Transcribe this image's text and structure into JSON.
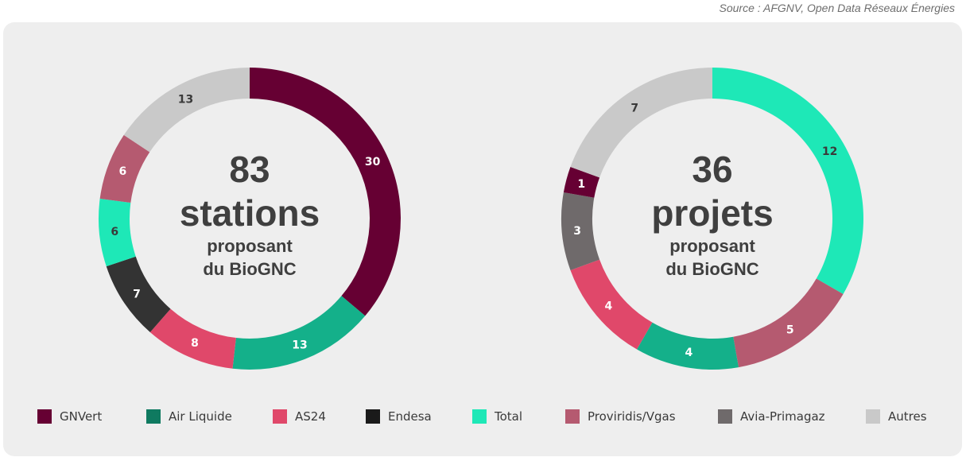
{
  "source": "Source : AFGNV, Open Data Réseaux Énergies",
  "colors": {
    "GNVert": "#660033",
    "Air Liquide": "#14b08a",
    "AS24": "#e0486a",
    "Endesa": "#333333",
    "Total": "#1ee8b7",
    "Proviridis/Vgas": "#b55a70",
    "Avia-Primagaz": "#6f6a6b",
    "Autres": "#c9c9c9"
  },
  "legend": [
    {
      "label": "GNVert",
      "color": "#660033"
    },
    {
      "label": "Air Liquide",
      "color": "#0f7a60"
    },
    {
      "label": "AS24",
      "color": "#e0486a"
    },
    {
      "label": "Endesa",
      "color": "#1a1a1a"
    },
    {
      "label": "Total",
      "color": "#1ee8b7"
    },
    {
      "label": "Proviridis/Vgas",
      "color": "#b55a70"
    },
    {
      "label": "Avia-Primagaz",
      "color": "#6f6a6b"
    },
    {
      "label": "Autres",
      "color": "#c9c9c9"
    }
  ],
  "chart_data": [
    {
      "type": "pie",
      "donut": true,
      "center": {
        "number": "83",
        "unit": "stations",
        "line1": "proposant",
        "line2": "du BioGNC"
      },
      "slices": [
        {
          "name": "GNVert",
          "value": 30,
          "color": "#660033",
          "label_color": "#ffffff"
        },
        {
          "name": "Air Liquide",
          "value": 13,
          "color": "#14b08a",
          "label_color": "#ffffff"
        },
        {
          "name": "AS24",
          "value": 8,
          "color": "#e0486a",
          "label_color": "#ffffff"
        },
        {
          "name": "Endesa",
          "value": 7,
          "color": "#333333",
          "label_color": "#ffffff"
        },
        {
          "name": "Total",
          "value": 6,
          "color": "#1ee8b7",
          "label_color": "#3a3a3a"
        },
        {
          "name": "Proviridis/Vgas",
          "value": 6,
          "color": "#b55a70",
          "label_color": "#ffffff"
        },
        {
          "name": "Autres",
          "value": 13,
          "color": "#c9c9c9",
          "label_color": "#3a3a3a"
        }
      ]
    },
    {
      "type": "pie",
      "donut": true,
      "center": {
        "number": "36",
        "unit": "projets",
        "line1": "proposant",
        "line2": "du BioGNC"
      },
      "slices": [
        {
          "name": "Total",
          "value": 12,
          "color": "#1ee8b7",
          "label_color": "#3a3a3a"
        },
        {
          "name": "Proviridis/Vgas",
          "value": 5,
          "color": "#b55a70",
          "label_color": "#ffffff"
        },
        {
          "name": "Air Liquide",
          "value": 4,
          "color": "#14b08a",
          "label_color": "#ffffff"
        },
        {
          "name": "AS24",
          "value": 4,
          "color": "#e0486a",
          "label_color": "#ffffff"
        },
        {
          "name": "Avia-Primagaz",
          "value": 3,
          "color": "#6f6a6b",
          "label_color": "#ffffff"
        },
        {
          "name": "GNVert",
          "value": 1,
          "color": "#660033",
          "label_color": "#ffffff"
        },
        {
          "name": "Autres",
          "value": 7,
          "color": "#c9c9c9",
          "label_color": "#3a3a3a"
        }
      ]
    }
  ]
}
